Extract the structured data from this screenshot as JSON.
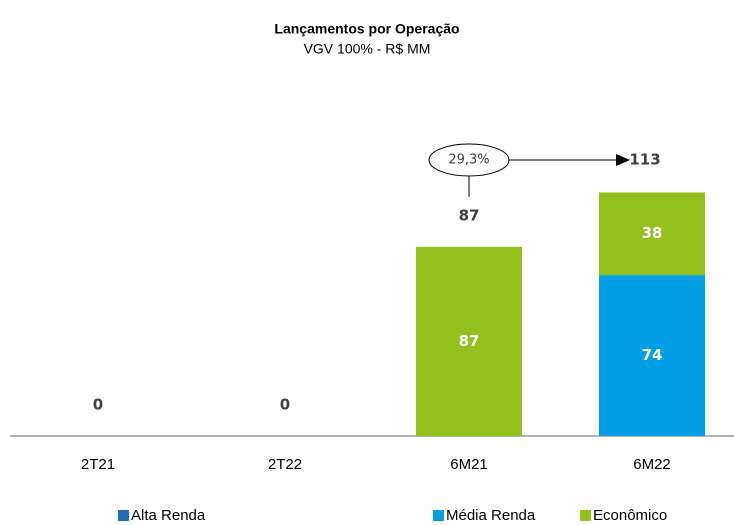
{
  "chart_data": {
    "type": "stacked_bar",
    "title": "Lançamentos por Operação",
    "subtitle": "VGV 100% - R$ MM",
    "categories": [
      "2T21",
      "2T22",
      "6M21",
      "6M22"
    ],
    "series": [
      {
        "name": "Alta Renda",
        "color": "#1f6fb6",
        "values": [
          0,
          0,
          0,
          0
        ]
      },
      {
        "name": "Média Renda",
        "color": "#009fe3",
        "values": [
          0,
          0,
          0,
          74
        ]
      },
      {
        "name": "Econômico",
        "color": "#95c11f",
        "values": [
          0,
          0,
          87,
          38
        ]
      }
    ],
    "totals": [
      0,
      0,
      87,
      113
    ],
    "annotation": "29,3%"
  }
}
